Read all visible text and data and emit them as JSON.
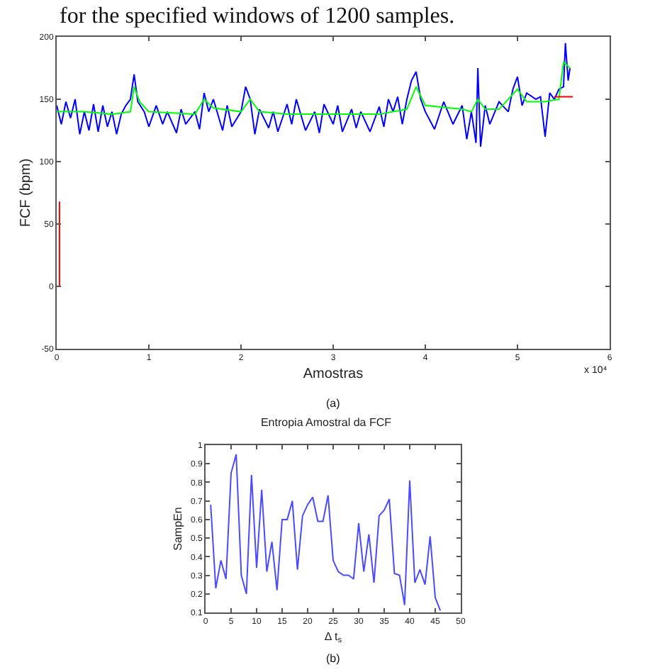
{
  "chart_data": [
    {
      "type": "line",
      "xlabel": "Amostras",
      "ylabel": "FCF (bpm)",
      "annotations": [
        "for the specified windows of 1200 samples.",
        "x 10⁴",
        "(a)"
      ],
      "xlim": [
        0,
        6
      ],
      "xticks": [
        0,
        1,
        2,
        3,
        4,
        5,
        6
      ],
      "ylim": [
        -50,
        200
      ],
      "yticks": [
        -50,
        0,
        50,
        100,
        150,
        200
      ],
      "grid": false,
      "series": [
        {
          "color": "#0000ff",
          "x": [
            0,
            0.05,
            0.1,
            0.15,
            0.2,
            0.25,
            0.3,
            0.35,
            0.4,
            0.45,
            0.5,
            0.55,
            0.6,
            0.65,
            0.7,
            0.75,
            0.8,
            0.84,
            0.88,
            0.95,
            1.0,
            1.08,
            1.15,
            1.2,
            1.3,
            1.35,
            1.4,
            1.5,
            1.55,
            1.6,
            1.65,
            1.7,
            1.8,
            1.85,
            1.9,
            2.0,
            2.05,
            2.1,
            2.15,
            2.2,
            2.3,
            2.35,
            2.4,
            2.5,
            2.55,
            2.6,
            2.7,
            2.8,
            2.85,
            2.9,
            3.0,
            3.05,
            3.1,
            3.2,
            3.25,
            3.3,
            3.4,
            3.5,
            3.55,
            3.6,
            3.65,
            3.7,
            3.75,
            3.8,
            3.85,
            3.9,
            3.95,
            4.0,
            4.1,
            4.2,
            4.3,
            4.4,
            4.45,
            4.5,
            4.55,
            4.57,
            4.6,
            4.65,
            4.7,
            4.8,
            4.9,
            4.95,
            5.0,
            5.05,
            5.1,
            5.2,
            5.25,
            5.3,
            5.35,
            5.4,
            5.45,
            5.5,
            5.52,
            5.55,
            5.57
          ],
          "values": [
            145,
            130,
            148,
            135,
            150,
            122,
            140,
            125,
            146,
            124,
            145,
            128,
            140,
            122,
            138,
            145,
            150,
            170,
            148,
            140,
            128,
            145,
            130,
            140,
            123,
            142,
            130,
            140,
            126,
            155,
            140,
            150,
            125,
            145,
            128,
            140,
            160,
            150,
            122,
            142,
            127,
            140,
            124,
            146,
            130,
            150,
            125,
            140,
            123,
            146,
            130,
            145,
            124,
            142,
            127,
            140,
            124,
            144,
            128,
            150,
            140,
            152,
            130,
            150,
            165,
            172,
            150,
            140,
            126,
            148,
            130,
            145,
            118,
            140,
            115,
            175,
            112,
            145,
            130,
            148,
            140,
            158,
            168,
            145,
            155,
            150,
            152,
            120,
            155,
            150,
            158,
            160,
            195,
            165,
            175
          ]
        },
        {
          "color": "#00ff00",
          "x": [
            0,
            0.3,
            0.6,
            0.8,
            0.84,
            0.9,
            1.0,
            1.5,
            1.6,
            1.7,
            2.0,
            2.1,
            2.2,
            2.5,
            3.0,
            3.5,
            3.65,
            3.8,
            3.9,
            4.0,
            4.4,
            4.5,
            4.57,
            4.65,
            4.8,
            5.0,
            5.1,
            5.3,
            5.45,
            5.5,
            5.57
          ],
          "values": [
            140,
            140,
            138,
            140,
            160,
            148,
            140,
            138,
            150,
            143,
            140,
            150,
            140,
            138,
            138,
            138,
            140,
            142,
            160,
            145,
            142,
            140,
            150,
            142,
            142,
            158,
            148,
            148,
            150,
            180,
            175
          ]
        },
        {
          "color": "#ff0000",
          "x": [
            0.03,
            0.03,
            null,
            5.4,
            5.6
          ],
          "values": [
            0,
            68,
            null,
            152,
            152
          ]
        }
      ]
    },
    {
      "type": "line",
      "title": "Entropia Amostral da FCF",
      "xlabel": "Δ t$_{s}$",
      "ylabel": "SampEn",
      "annotations": [
        "(b)"
      ],
      "xlim": [
        0,
        50
      ],
      "xticks": [
        0,
        5,
        10,
        15,
        20,
        25,
        30,
        35,
        40,
        45,
        50
      ],
      "ylim": [
        0.1,
        1
      ],
      "yticks": [
        0.1,
        0.2,
        0.3,
        0.4,
        0.5,
        0.6,
        0.7,
        0.8,
        0.9,
        1
      ],
      "grid": false,
      "x": [
        1,
        2,
        3,
        4,
        5,
        6,
        7,
        8,
        9,
        10,
        11,
        12,
        13,
        14,
        15,
        16,
        17,
        18,
        19,
        20,
        21,
        22,
        23,
        24,
        25,
        26,
        27,
        28,
        29,
        30,
        31,
        32,
        33,
        34,
        35,
        36,
        37,
        38,
        39,
        40,
        41,
        42,
        43,
        44,
        45,
        46
      ],
      "series": [
        {
          "color": "#4a4aff",
          "values": [
            0.68,
            0.23,
            0.38,
            0.28,
            0.85,
            0.95,
            0.3,
            0.2,
            0.84,
            0.34,
            0.76,
            0.32,
            0.48,
            0.22,
            0.6,
            0.6,
            0.7,
            0.33,
            0.62,
            0.68,
            0.72,
            0.59,
            0.59,
            0.73,
            0.38,
            0.32,
            0.3,
            0.3,
            0.28,
            0.58,
            0.32,
            0.52,
            0.26,
            0.62,
            0.65,
            0.71,
            0.31,
            0.3,
            0.14,
            0.81,
            0.26,
            0.33,
            0.25,
            0.51,
            0.18,
            0.11
          ]
        }
      ]
    }
  ]
}
